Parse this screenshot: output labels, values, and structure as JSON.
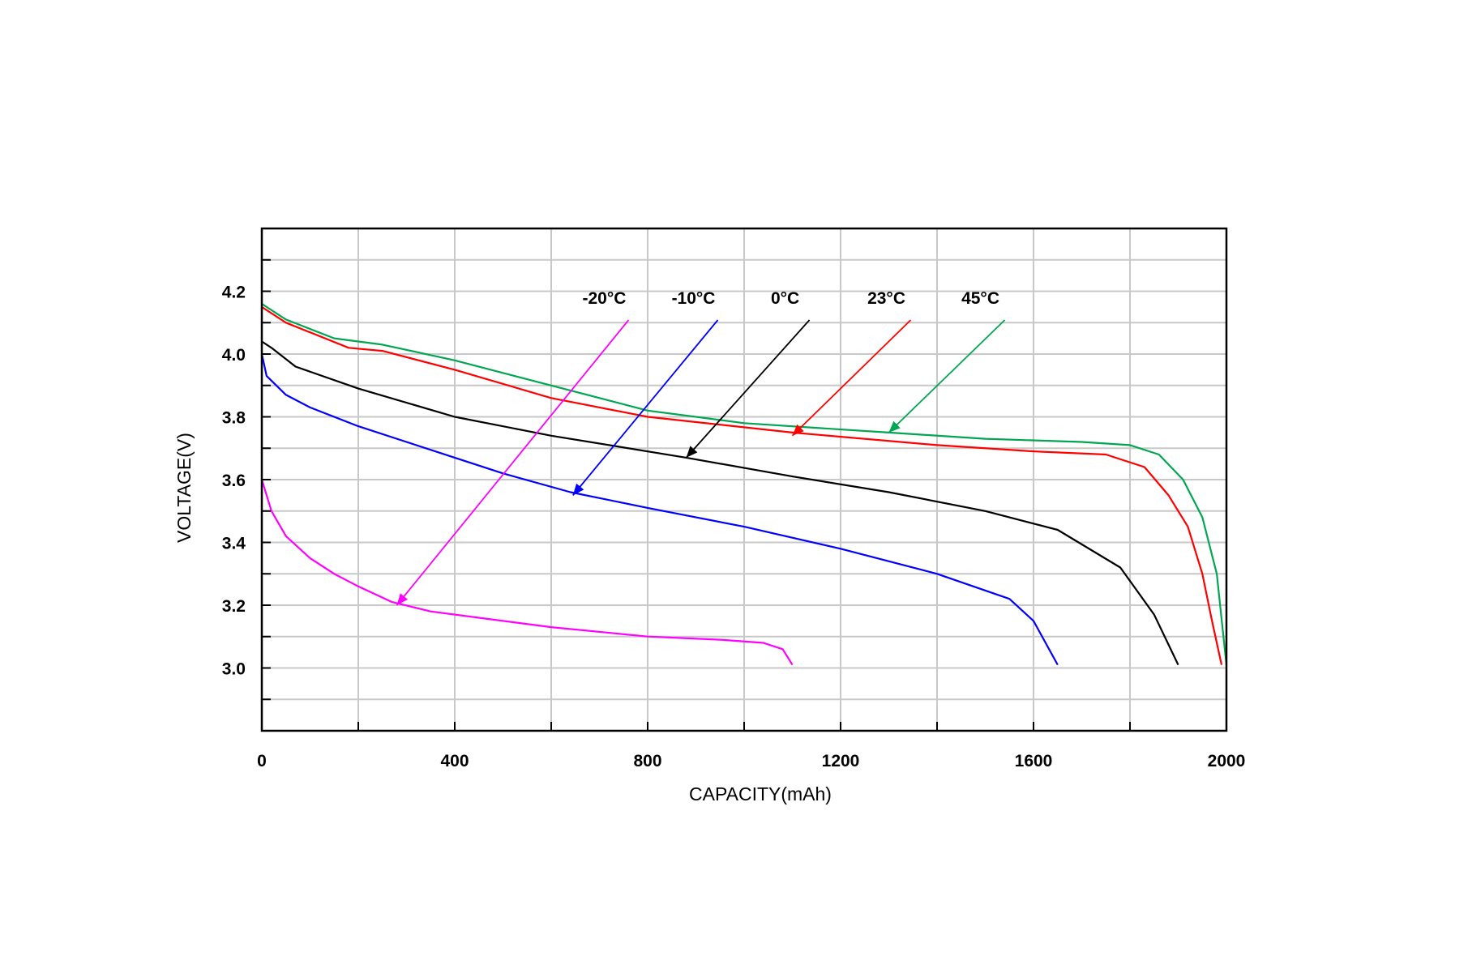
{
  "chart_data": {
    "type": "line",
    "title": "",
    "xlabel": "CAPACITY(mAh)",
    "ylabel": "VOLTAGE(V)",
    "xlim": [
      0,
      2000
    ],
    "ylim": [
      2.8,
      4.4
    ],
    "x_ticks": [
      "0",
      "400",
      "800",
      "1200",
      "1600",
      "2000"
    ],
    "y_ticks": [
      "3.0",
      "3.2",
      "3.4",
      "3.6",
      "3.8",
      "4.0",
      "4.2"
    ],
    "grid": true,
    "legend": "annotations",
    "series": [
      {
        "name": "-20°C",
        "color": "#ff00ff",
        "points": [
          [
            0,
            3.6
          ],
          [
            20,
            3.5
          ],
          [
            50,
            3.42
          ],
          [
            100,
            3.35
          ],
          [
            150,
            3.3
          ],
          [
            200,
            3.26
          ],
          [
            270,
            3.21
          ],
          [
            350,
            3.18
          ],
          [
            450,
            3.16
          ],
          [
            600,
            3.13
          ],
          [
            800,
            3.1
          ],
          [
            950,
            3.09
          ],
          [
            1040,
            3.08
          ],
          [
            1080,
            3.06
          ],
          [
            1100,
            3.01
          ]
        ],
        "label_at": [
          710,
          4.16
        ],
        "arrow_to": [
          280,
          3.2
        ]
      },
      {
        "name": "-10°C",
        "color": "#0000ff",
        "points": [
          [
            0,
            4.0
          ],
          [
            10,
            3.93
          ],
          [
            50,
            3.87
          ],
          [
            100,
            3.83
          ],
          [
            200,
            3.77
          ],
          [
            300,
            3.72
          ],
          [
            400,
            3.67
          ],
          [
            500,
            3.62
          ],
          [
            640,
            3.56
          ],
          [
            800,
            3.51
          ],
          [
            1000,
            3.45
          ],
          [
            1200,
            3.38
          ],
          [
            1400,
            3.3
          ],
          [
            1550,
            3.22
          ],
          [
            1600,
            3.15
          ],
          [
            1650,
            3.01
          ]
        ],
        "label_at": [
          895,
          4.16
        ],
        "arrow_to": [
          645,
          3.55
        ]
      },
      {
        "name": "0°C",
        "color": "#000000",
        "points": [
          [
            0,
            4.04
          ],
          [
            20,
            4.02
          ],
          [
            70,
            3.96
          ],
          [
            200,
            3.89
          ],
          [
            400,
            3.8
          ],
          [
            600,
            3.74
          ],
          [
            880,
            3.67
          ],
          [
            1100,
            3.61
          ],
          [
            1300,
            3.56
          ],
          [
            1500,
            3.5
          ],
          [
            1650,
            3.44
          ],
          [
            1780,
            3.32
          ],
          [
            1850,
            3.17
          ],
          [
            1900,
            3.01
          ]
        ],
        "label_at": [
          1085,
          4.16
        ],
        "arrow_to": [
          880,
          3.67
        ]
      },
      {
        "name": "23°C",
        "color": "#ff0000",
        "points": [
          [
            0,
            4.15
          ],
          [
            50,
            4.1
          ],
          [
            180,
            4.02
          ],
          [
            250,
            4.01
          ],
          [
            400,
            3.95
          ],
          [
            600,
            3.86
          ],
          [
            800,
            3.8
          ],
          [
            1100,
            3.75
          ],
          [
            1400,
            3.71
          ],
          [
            1600,
            3.69
          ],
          [
            1750,
            3.68
          ],
          [
            1830,
            3.64
          ],
          [
            1880,
            3.55
          ],
          [
            1920,
            3.45
          ],
          [
            1950,
            3.3
          ],
          [
            1970,
            3.15
          ],
          [
            1990,
            3.01
          ]
        ],
        "label_at": [
          1295,
          4.16
        ],
        "arrow_to": [
          1100,
          3.74
        ]
      },
      {
        "name": "45°C",
        "color": "#00a651",
        "points": [
          [
            0,
            4.16
          ],
          [
            50,
            4.11
          ],
          [
            150,
            4.05
          ],
          [
            250,
            4.03
          ],
          [
            400,
            3.98
          ],
          [
            600,
            3.9
          ],
          [
            800,
            3.82
          ],
          [
            1000,
            3.78
          ],
          [
            1300,
            3.75
          ],
          [
            1500,
            3.73
          ],
          [
            1700,
            3.72
          ],
          [
            1800,
            3.71
          ],
          [
            1860,
            3.68
          ],
          [
            1910,
            3.6
          ],
          [
            1950,
            3.48
          ],
          [
            1980,
            3.3
          ],
          [
            2000,
            3.01
          ]
        ],
        "label_at": [
          1490,
          4.16
        ],
        "arrow_to": [
          1300,
          3.75
        ]
      }
    ]
  }
}
